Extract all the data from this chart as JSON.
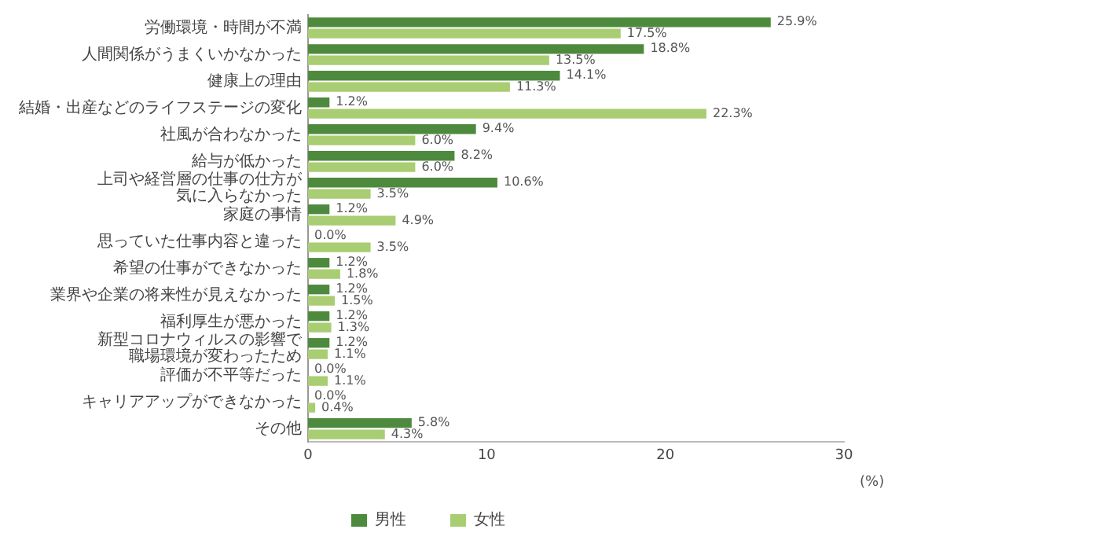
{
  "chart_data": {
    "type": "bar",
    "orientation": "horizontal",
    "xlabel": "(%)",
    "categories": [
      "労働環境・時間が不満",
      "人間関係がうまくいかなかった",
      "健康上の理由",
      "結婚・出産などのライフステージの変化",
      "社風が合わなかった",
      "給与が低かった",
      "上司や経営層の仕事の仕方が気に入らなかった",
      "家庭の事情",
      "思っていた仕事内容と違った",
      "希望の仕事ができなかった",
      "業界や企業の将来性が見えなかった",
      "福利厚生が悪かった",
      "新型コロナウィルスの影響で職場環境が変わったため",
      "評価が不平等だった",
      "キャリアアップができなかった",
      "その他"
    ],
    "series": [
      {
        "name": "男性",
        "color": "#4e8a3e",
        "values": [
          25.9,
          18.8,
          14.1,
          1.2,
          9.4,
          8.2,
          10.6,
          1.2,
          0.0,
          1.2,
          1.2,
          1.2,
          1.2,
          0.0,
          0.0,
          5.8
        ],
        "value_labels": [
          "25.9%",
          "18.8%",
          "14.1%",
          "1.2%",
          "9.4%",
          "8.2%",
          "10.6%",
          "1.2%",
          "0.0%",
          "1.2%",
          "1.2%",
          "1.2%",
          "1.2%",
          "0.0%",
          "0.0%",
          "5.8%"
        ]
      },
      {
        "name": "女性",
        "color": "#a9cd72",
        "values": [
          17.5,
          13.5,
          11.3,
          22.3,
          6.0,
          6.0,
          3.5,
          4.9,
          3.5,
          1.8,
          1.5,
          1.3,
          1.1,
          1.1,
          0.4,
          4.3
        ],
        "value_labels": [
          "17.5%",
          "13.5%",
          "11.3%",
          "22.3%",
          "6.0%",
          "6.0%",
          "3.5%",
          "4.9%",
          "3.5%",
          "1.8%",
          "1.5%",
          "1.3%",
          "1.1%",
          "1.1%",
          "0.4%",
          "4.3%"
        ]
      }
    ],
    "xlim": [
      0,
      30
    ],
    "xticks": [
      0,
      10,
      20,
      30
    ],
    "grid": false,
    "legend": "bottom"
  }
}
